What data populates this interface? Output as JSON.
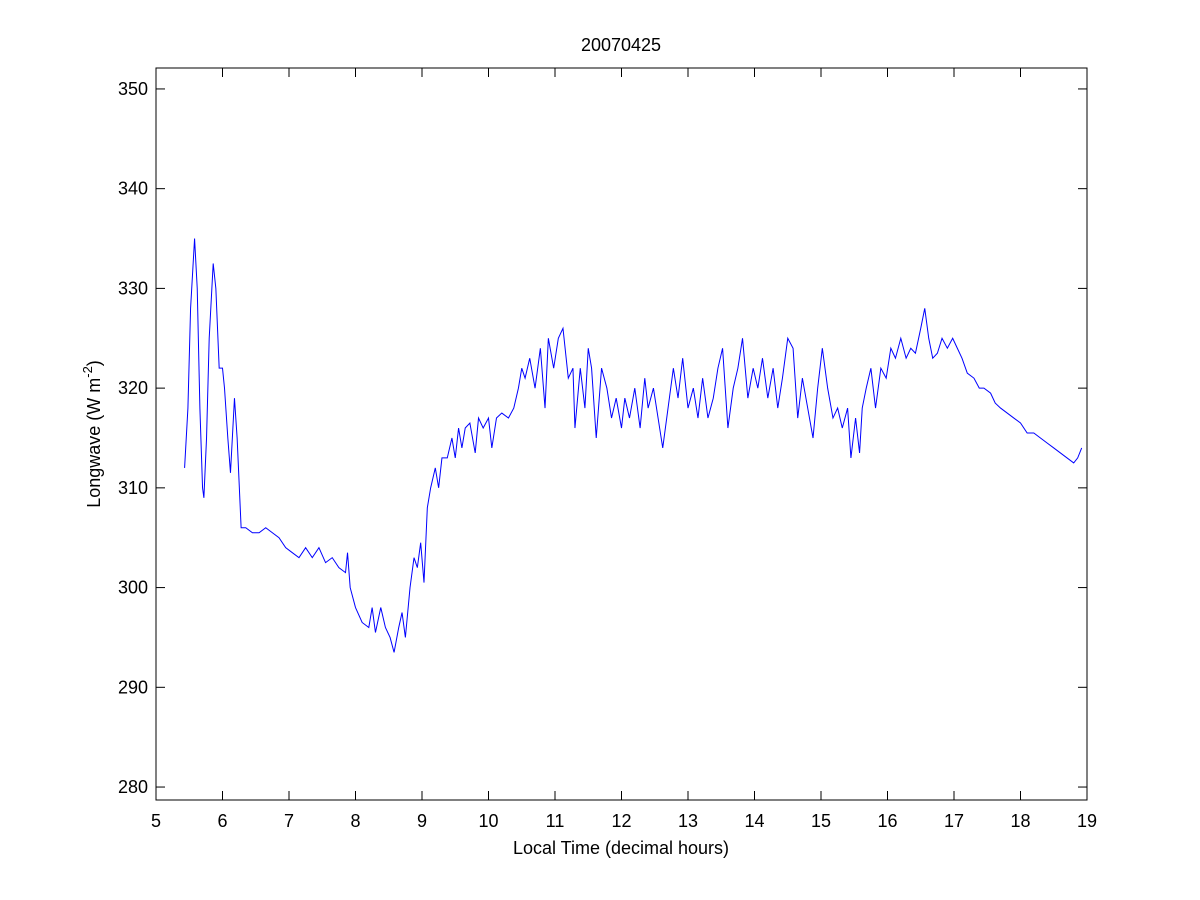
{
  "chart_data": {
    "type": "line",
    "title": "20070425",
    "x_label": "Local Time (decimal hours)",
    "y_label": [
      "Longwave (W m",
      "-2",
      ")"
    ],
    "xlim": [
      5,
      19
    ],
    "xticks": [
      5,
      6,
      7,
      8,
      9,
      10,
      11,
      12,
      13,
      14,
      15,
      16,
      17,
      18,
      19
    ],
    "ylim": [
      278.7,
      352.1
    ],
    "yticks": [
      280,
      290,
      300,
      310,
      320,
      330,
      340,
      350
    ],
    "grid": false,
    "series": [
      {
        "color": "#0000ff",
        "x": [
          5.43,
          5.48,
          5.52,
          5.58,
          5.62,
          5.66,
          5.7,
          5.72,
          5.76,
          5.8,
          5.86,
          5.9,
          5.95,
          6.0,
          6.03,
          6.08,
          6.12,
          6.18,
          6.22,
          6.28,
          6.35,
          6.45,
          6.55,
          6.65,
          6.75,
          6.85,
          6.95,
          7.05,
          7.15,
          7.25,
          7.35,
          7.45,
          7.55,
          7.65,
          7.75,
          7.85,
          7.88,
          7.92,
          8.0,
          8.1,
          8.2,
          8.25,
          8.3,
          8.38,
          8.45,
          8.52,
          8.58,
          8.65,
          8.7,
          8.75,
          8.82,
          8.88,
          8.93,
          8.98,
          9.03,
          9.08,
          9.13,
          9.2,
          9.25,
          9.3,
          9.38,
          9.45,
          9.5,
          9.55,
          9.6,
          9.65,
          9.72,
          9.8,
          9.85,
          9.92,
          10.0,
          10.05,
          10.12,
          10.2,
          10.3,
          10.38,
          10.45,
          10.5,
          10.55,
          10.62,
          10.7,
          10.78,
          10.85,
          10.9,
          10.98,
          11.05,
          11.12,
          11.2,
          11.27,
          11.3,
          11.38,
          11.45,
          11.5,
          11.55,
          11.62,
          11.7,
          11.78,
          11.85,
          11.92,
          12.0,
          12.05,
          12.12,
          12.2,
          12.28,
          12.35,
          12.4,
          12.48,
          12.55,
          12.62,
          12.7,
          12.78,
          12.85,
          12.92,
          13.0,
          13.08,
          13.15,
          13.22,
          13.3,
          13.38,
          13.45,
          13.52,
          13.6,
          13.68,
          13.75,
          13.82,
          13.9,
          13.98,
          14.05,
          14.12,
          14.2,
          14.28,
          14.35,
          14.42,
          14.5,
          14.58,
          14.65,
          14.72,
          14.8,
          14.88,
          14.95,
          15.02,
          15.1,
          15.18,
          15.25,
          15.32,
          15.4,
          15.45,
          15.52,
          15.58,
          15.62,
          15.68,
          15.75,
          15.82,
          15.9,
          15.98,
          16.05,
          16.12,
          16.2,
          16.28,
          16.35,
          16.42,
          16.5,
          16.56,
          16.62,
          16.68,
          16.75,
          16.82,
          16.9,
          16.98,
          17.05,
          17.12,
          17.2,
          17.3,
          17.38,
          17.45,
          17.55,
          17.62,
          17.7,
          17.8,
          17.9,
          18.0,
          18.1,
          18.2,
          18.3,
          18.4,
          18.5,
          18.6,
          18.7,
          18.8,
          18.86,
          18.92
        ],
        "values": [
          312,
          318,
          328,
          335,
          330,
          318,
          310,
          309,
          315,
          325,
          332.5,
          330,
          322,
          322,
          320,
          315,
          311.5,
          319,
          315,
          306,
          306,
          305.5,
          305.5,
          306,
          305.5,
          305,
          304,
          303.5,
          303,
          304,
          303,
          304,
          302.5,
          303,
          302,
          301.5,
          303.5,
          300,
          298,
          296.5,
          296,
          298,
          295.5,
          298,
          296,
          295,
          293.5,
          296,
          297.5,
          295,
          300,
          303,
          302,
          304.5,
          300.5,
          308,
          310,
          312,
          310,
          313,
          313,
          315,
          313,
          316,
          314,
          316,
          316.5,
          313.5,
          317,
          316,
          317,
          314,
          317,
          317.5,
          317,
          318,
          320,
          322,
          321,
          323,
          320,
          324,
          318,
          325,
          322,
          325,
          326,
          321,
          322,
          316,
          322,
          318,
          324,
          322,
          315,
          322,
          320,
          317,
          319,
          316,
          319,
          317,
          320,
          316,
          321,
          318,
          320,
          317,
          314,
          318,
          322,
          319,
          323,
          318,
          320,
          317,
          321,
          317,
          319,
          322,
          324,
          316,
          320,
          322,
          325,
          319,
          322,
          320,
          323,
          319,
          322,
          318,
          321,
          325,
          324,
          317,
          321,
          318,
          315,
          320,
          324,
          320,
          317,
          318,
          316,
          318,
          313,
          317,
          313.5,
          318,
          320,
          322,
          318,
          322,
          321,
          324,
          323,
          325,
          323,
          324,
          323.5,
          326,
          328,
          325,
          323,
          323.5,
          325,
          324,
          325,
          324,
          323,
          321.5,
          321,
          320,
          320,
          319.5,
          318.5,
          318,
          317.5,
          317,
          316.5,
          315.5,
          315.5,
          315,
          314.5,
          314,
          313.5,
          313,
          312.5,
          313,
          314
        ]
      }
    ]
  }
}
